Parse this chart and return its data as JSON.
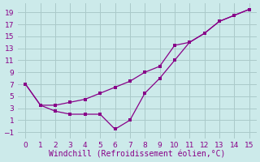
{
  "line_jagged_x": [
    0,
    1,
    2,
    3,
    4,
    5,
    6,
    7,
    8,
    9,
    10,
    11,
    12,
    13,
    14,
    15
  ],
  "line_jagged_y": [
    7,
    3.5,
    2.5,
    2.0,
    2.0,
    2.0,
    -0.5,
    1.0,
    5.5,
    8.0,
    11.0,
    14.0,
    15.5,
    17.5,
    18.5,
    19.5
  ],
  "line_smooth_x": [
    0,
    1,
    2,
    3,
    4,
    5,
    6,
    7,
    8,
    9,
    10,
    11,
    12,
    13,
    14,
    15
  ],
  "line_smooth_y": [
    7,
    3.5,
    3.5,
    4.0,
    4.5,
    5.5,
    6.5,
    7.5,
    9.0,
    10.0,
    13.5,
    14.0,
    15.5,
    17.5,
    18.5,
    19.5
  ],
  "line_color": "#880088",
  "bg_color": "#cceaea",
  "grid_color": "#aacaca",
  "xlabel": "Windchill (Refroidissement éolien,°C)",
  "xlim": [
    -0.5,
    15.5
  ],
  "ylim": [
    -2.0,
    20.5
  ],
  "xticks": [
    0,
    1,
    2,
    3,
    4,
    5,
    6,
    7,
    8,
    9,
    10,
    11,
    12,
    13,
    14,
    15
  ],
  "yticks": [
    -1,
    1,
    3,
    5,
    7,
    9,
    11,
    13,
    15,
    17,
    19
  ],
  "xlabel_fontsize": 7.0,
  "tick_fontsize": 6.5,
  "marker_size": 2.5
}
